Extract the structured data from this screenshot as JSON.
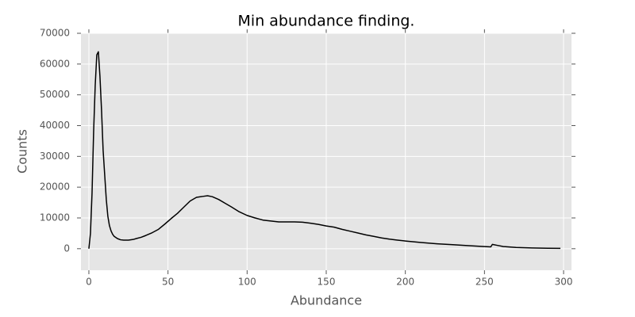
{
  "chart_data": {
    "type": "line",
    "title": "Min abundance finding.",
    "x_label": "Abundance",
    "y_label": "Counts",
    "xlim": [
      -5,
      305
    ],
    "ylim": [
      -7000,
      70000
    ],
    "xticks": [
      0,
      50,
      100,
      150,
      200,
      250,
      300
    ],
    "yticks": [
      0,
      10000,
      20000,
      30000,
      40000,
      50000,
      60000,
      70000
    ],
    "grid": true,
    "background": "#e5e5e5",
    "x": [
      0,
      1,
      2,
      3,
      4,
      5,
      6,
      7,
      8,
      9,
      10,
      11,
      12,
      13,
      14,
      15,
      16,
      18,
      20,
      22,
      25,
      28,
      30,
      33,
      36,
      40,
      44,
      48,
      52,
      56,
      60,
      64,
      68,
      72,
      75,
      78,
      82,
      86,
      90,
      95,
      100,
      105,
      110,
      115,
      120,
      125,
      130,
      135,
      140,
      145,
      150,
      155,
      160,
      165,
      170,
      175,
      180,
      185,
      190,
      195,
      200,
      210,
      220,
      230,
      240,
      250,
      254,
      255,
      258,
      262,
      270,
      280,
      290,
      298
    ],
    "series": [
      {
        "color": "#000000",
        "values": [
          0,
          5000,
          18000,
          38000,
          53000,
          63000,
          64000,
          56000,
          45000,
          32000,
          24000,
          16000,
          10500,
          7500,
          5800,
          4700,
          4000,
          3300,
          2900,
          2800,
          2800,
          3000,
          3300,
          3700,
          4300,
          5200,
          6300,
          8000,
          9800,
          11500,
          13500,
          15500,
          16700,
          17000,
          17200,
          16900,
          16000,
          14800,
          13600,
          12000,
          10800,
          10000,
          9300,
          9000,
          8700,
          8700,
          8700,
          8600,
          8300,
          7900,
          7400,
          7000,
          6300,
          5700,
          5100,
          4500,
          4000,
          3500,
          3100,
          2800,
          2500,
          2000,
          1600,
          1300,
          1000,
          700,
          600,
          1400,
          1100,
          700,
          400,
          250,
          150,
          100
        ]
      }
    ]
  }
}
